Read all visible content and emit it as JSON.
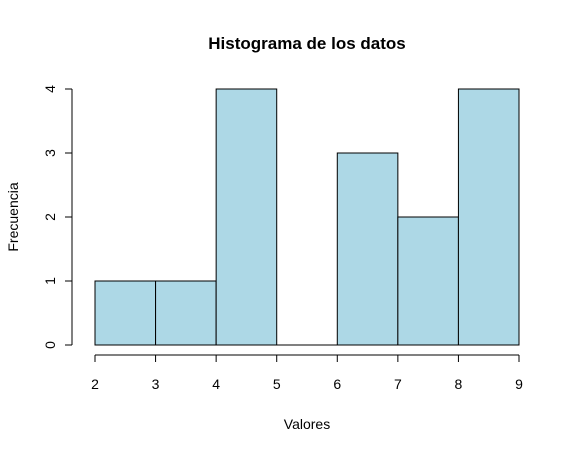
{
  "chart_data": {
    "type": "bar",
    "subtype": "histogram",
    "title": "Histograma de los datos",
    "xlabel": "Valores",
    "ylabel": "Frecuencia",
    "bins": [
      {
        "from": 2,
        "to": 3,
        "count": 1
      },
      {
        "from": 3,
        "to": 4,
        "count": 1
      },
      {
        "from": 4,
        "to": 5,
        "count": 4
      },
      {
        "from": 5,
        "to": 6,
        "count": 0
      },
      {
        "from": 6,
        "to": 7,
        "count": 3
      },
      {
        "from": 7,
        "to": 8,
        "count": 2
      },
      {
        "from": 8,
        "to": 9,
        "count": 4
      }
    ],
    "xlim": [
      2,
      9
    ],
    "ylim": [
      0,
      4
    ],
    "x_ticks": [
      "2",
      "3",
      "4",
      "5",
      "6",
      "7",
      "8",
      "9"
    ],
    "y_ticks": [
      "0",
      "1",
      "2",
      "3",
      "4"
    ],
    "bar_fill": "#add8e6",
    "bar_stroke": "#000000",
    "grid": false,
    "legend": "none"
  }
}
